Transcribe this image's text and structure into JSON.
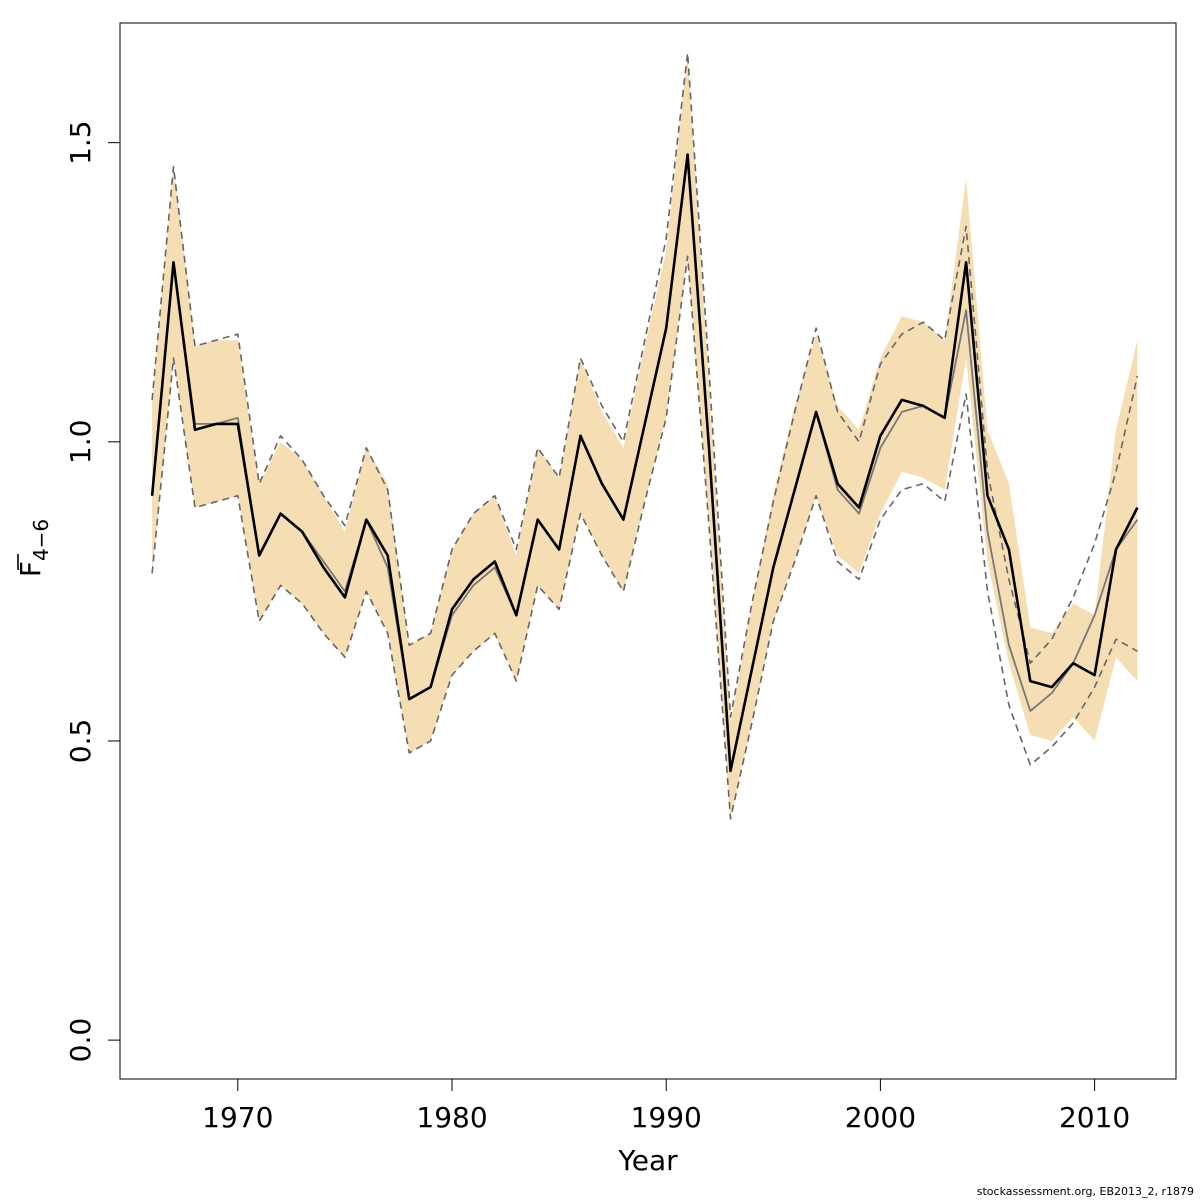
{
  "chart_data": {
    "type": "line",
    "xlabel": "Year",
    "ylabel_main": "F",
    "ylabel_sub": "4−6",
    "xlim": [
      1964.5,
      2013.8
    ],
    "ylim": [
      -0.065,
      1.7
    ],
    "x_ticks": [
      1970,
      1980,
      1990,
      2000,
      2010
    ],
    "x_tick_labels": [
      "1970",
      "1980",
      "1990",
      "2000",
      "2010"
    ],
    "y_ticks": [
      0.0,
      0.5,
      1.0,
      1.5
    ],
    "y_tick_labels": [
      "0.0",
      "0.5",
      "1.0",
      "1.5"
    ],
    "grid": false,
    "colors": {
      "band": "#f5deb3",
      "main": "#000000",
      "secondary": "#777777",
      "dashed": "#666666"
    },
    "x": [
      1966,
      1967,
      1968,
      1969,
      1970,
      1971,
      1972,
      1973,
      1974,
      1975,
      1976,
      1977,
      1978,
      1979,
      1980,
      1981,
      1982,
      1983,
      1984,
      1985,
      1986,
      1987,
      1988,
      1989,
      1990,
      1991,
      1992,
      1993,
      1994,
      1995,
      1996,
      1997,
      1998,
      1999,
      2000,
      2001,
      2002,
      2003,
      2004,
      2005,
      2006,
      2007,
      2008,
      2009,
      2010,
      2011,
      2012
    ],
    "band_lower": [
      0.78,
      1.14,
      0.89,
      0.9,
      0.91,
      0.7,
      0.76,
      0.73,
      0.68,
      0.64,
      0.75,
      0.68,
      0.48,
      0.5,
      0.61,
      0.65,
      0.68,
      0.6,
      0.76,
      0.72,
      0.88,
      0.81,
      0.75,
      0.9,
      1.04,
      1.31,
      0.86,
      0.37,
      0.53,
      0.7,
      0.8,
      0.91,
      0.81,
      0.78,
      0.88,
      0.95,
      0.94,
      0.92,
      1.14,
      0.8,
      0.63,
      0.51,
      0.5,
      0.54,
      0.5,
      0.64,
      0.6
    ],
    "band_upper": [
      1.07,
      1.46,
      1.16,
      1.17,
      1.17,
      0.93,
      1.0,
      0.97,
      0.91,
      0.85,
      0.99,
      0.93,
      0.66,
      0.68,
      0.82,
      0.88,
      0.91,
      0.81,
      0.99,
      0.94,
      1.14,
      1.05,
      0.99,
      1.16,
      1.32,
      1.65,
      1.1,
      0.53,
      0.73,
      0.91,
      1.06,
      1.18,
      1.06,
      1.02,
      1.14,
      1.21,
      1.2,
      1.17,
      1.44,
      1.02,
      0.93,
      0.69,
      0.68,
      0.73,
      0.71,
      1.02,
      1.17
    ],
    "series": [
      {
        "line": "solid-thick",
        "values": [
          0.91,
          1.3,
          1.02,
          1.03,
          1.03,
          0.81,
          0.88,
          0.85,
          0.79,
          0.74,
          0.87,
          0.81,
          0.57,
          0.59,
          0.72,
          0.77,
          0.8,
          0.71,
          0.87,
          0.82,
          1.01,
          0.93,
          0.87,
          1.03,
          1.19,
          1.48,
          0.99,
          0.45,
          0.62,
          0.79,
          0.92,
          1.05,
          0.93,
          0.89,
          1.01,
          1.07,
          1.06,
          1.04,
          1.3,
          0.91,
          0.82,
          0.6,
          0.59,
          0.63,
          0.61,
          0.82,
          0.89
        ]
      },
      {
        "line": "solid-thin",
        "values": [
          0.91,
          1.3,
          1.03,
          1.03,
          1.04,
          0.81,
          0.88,
          0.85,
          0.8,
          0.75,
          0.87,
          0.79,
          0.57,
          0.59,
          0.71,
          0.76,
          0.79,
          0.71,
          0.87,
          0.82,
          1.01,
          0.93,
          0.87,
          1.03,
          1.19,
          1.48,
          0.99,
          0.45,
          0.62,
          0.79,
          0.92,
          1.05,
          0.92,
          0.88,
          0.99,
          1.05,
          1.06,
          1.04,
          1.22,
          0.85,
          0.66,
          0.55,
          0.58,
          0.63,
          0.71,
          0.82,
          0.87
        ]
      },
      {
        "line": "dashed",
        "values": [
          0.78,
          1.14,
          0.89,
          0.9,
          0.91,
          0.7,
          0.76,
          0.73,
          0.68,
          0.64,
          0.75,
          0.68,
          0.48,
          0.5,
          0.61,
          0.65,
          0.68,
          0.6,
          0.76,
          0.72,
          0.88,
          0.81,
          0.75,
          0.9,
          1.04,
          1.31,
          0.86,
          0.37,
          0.53,
          0.7,
          0.8,
          0.91,
          0.8,
          0.77,
          0.87,
          0.92,
          0.93,
          0.9,
          1.08,
          0.75,
          0.56,
          0.46,
          0.49,
          0.53,
          0.59,
          0.67,
          0.65
        ]
      },
      {
        "line": "dashed",
        "values": [
          1.07,
          1.46,
          1.16,
          1.17,
          1.18,
          0.93,
          1.01,
          0.97,
          0.91,
          0.86,
          0.99,
          0.92,
          0.66,
          0.68,
          0.82,
          0.88,
          0.91,
          0.82,
          0.99,
          0.94,
          1.14,
          1.06,
          1.0,
          1.17,
          1.34,
          1.65,
          1.12,
          0.54,
          0.73,
          0.9,
          1.05,
          1.19,
          1.05,
          1.0,
          1.13,
          1.18,
          1.2,
          1.17,
          1.36,
          0.95,
          0.77,
          0.63,
          0.67,
          0.74,
          0.83,
          0.95,
          1.11
        ]
      }
    ]
  },
  "footer": {
    "credit": "stockassessment.org, EB2013_2, r1879"
  }
}
